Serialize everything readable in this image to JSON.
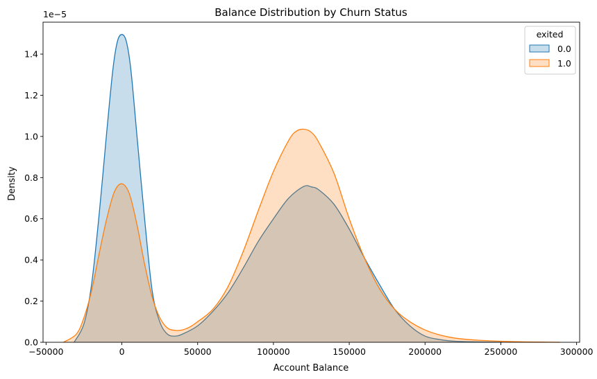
{
  "chart_data": {
    "type": "area",
    "title": "Balance Distribution by Churn Status",
    "xlabel": "Account Balance",
    "ylabel": "Density",
    "y_scale_label": "1e−5",
    "xlim": [
      -52000,
      302000
    ],
    "ylim": [
      0,
      1.555
    ],
    "x_ticks": [
      -50000,
      0,
      50000,
      100000,
      150000,
      200000,
      250000,
      300000
    ],
    "x_tick_labels": [
      "−50000",
      "0",
      "50000",
      "100000",
      "150000",
      "200000",
      "250000",
      "300000"
    ],
    "y_ticks": [
      0.0,
      0.2,
      0.4,
      0.6,
      0.8,
      1.0,
      1.2,
      1.4
    ],
    "y_tick_labels": [
      "0.0",
      "0.2",
      "0.4",
      "0.6",
      "0.8",
      "1.0",
      "1.2",
      "1.4"
    ],
    "grid": false,
    "legend": {
      "title": "exited",
      "position": "top-right"
    },
    "series": [
      {
        "name": "0.0",
        "color": "#1f77b4",
        "points": [
          [
            -31500,
            0.0
          ],
          [
            -25000,
            0.09
          ],
          [
            -20000,
            0.28
          ],
          [
            -15000,
            0.62
          ],
          [
            -10000,
            1.02
          ],
          [
            -6000,
            1.32
          ],
          [
            -3000,
            1.46
          ],
          [
            0,
            1.495
          ],
          [
            3000,
            1.46
          ],
          [
            6000,
            1.32
          ],
          [
            10000,
            1.0
          ],
          [
            15000,
            0.6
          ],
          [
            20000,
            0.25
          ],
          [
            25000,
            0.1
          ],
          [
            30000,
            0.04
          ],
          [
            35000,
            0.03
          ],
          [
            40000,
            0.04
          ],
          [
            50000,
            0.08
          ],
          [
            60000,
            0.15
          ],
          [
            70000,
            0.24
          ],
          [
            80000,
            0.36
          ],
          [
            90000,
            0.49
          ],
          [
            100000,
            0.6
          ],
          [
            110000,
            0.7
          ],
          [
            120000,
            0.757
          ],
          [
            125000,
            0.755
          ],
          [
            130000,
            0.74
          ],
          [
            140000,
            0.67
          ],
          [
            150000,
            0.55
          ],
          [
            160000,
            0.41
          ],
          [
            170000,
            0.28
          ],
          [
            180000,
            0.16
          ],
          [
            190000,
            0.08
          ],
          [
            200000,
            0.03
          ],
          [
            210000,
            0.013
          ],
          [
            220000,
            0.005
          ],
          [
            235000,
            0.002
          ],
          [
            251000,
            0.0
          ]
        ]
      },
      {
        "name": "1.0",
        "color": "#ff7f0e",
        "points": [
          [
            -38500,
            0.0
          ],
          [
            -30000,
            0.04
          ],
          [
            -25000,
            0.12
          ],
          [
            -20000,
            0.25
          ],
          [
            -15000,
            0.43
          ],
          [
            -10000,
            0.6
          ],
          [
            -5000,
            0.73
          ],
          [
            0,
            0.77
          ],
          [
            5000,
            0.72
          ],
          [
            10000,
            0.57
          ],
          [
            15000,
            0.38
          ],
          [
            20000,
            0.22
          ],
          [
            25000,
            0.12
          ],
          [
            30000,
            0.07
          ],
          [
            35000,
            0.058
          ],
          [
            40000,
            0.06
          ],
          [
            45000,
            0.075
          ],
          [
            50000,
            0.1
          ],
          [
            60000,
            0.16
          ],
          [
            70000,
            0.27
          ],
          [
            80000,
            0.44
          ],
          [
            90000,
            0.64
          ],
          [
            100000,
            0.83
          ],
          [
            110000,
            0.98
          ],
          [
            115000,
            1.025
          ],
          [
            120000,
            1.035
          ],
          [
            125000,
            1.02
          ],
          [
            130000,
            0.97
          ],
          [
            140000,
            0.82
          ],
          [
            150000,
            0.6
          ],
          [
            160000,
            0.41
          ],
          [
            170000,
            0.26
          ],
          [
            180000,
            0.16
          ],
          [
            190000,
            0.1
          ],
          [
            200000,
            0.06
          ],
          [
            210000,
            0.035
          ],
          [
            220000,
            0.02
          ],
          [
            235000,
            0.01
          ],
          [
            250000,
            0.005
          ],
          [
            265000,
            0.002
          ],
          [
            289000,
            0.0
          ]
        ]
      }
    ]
  }
}
